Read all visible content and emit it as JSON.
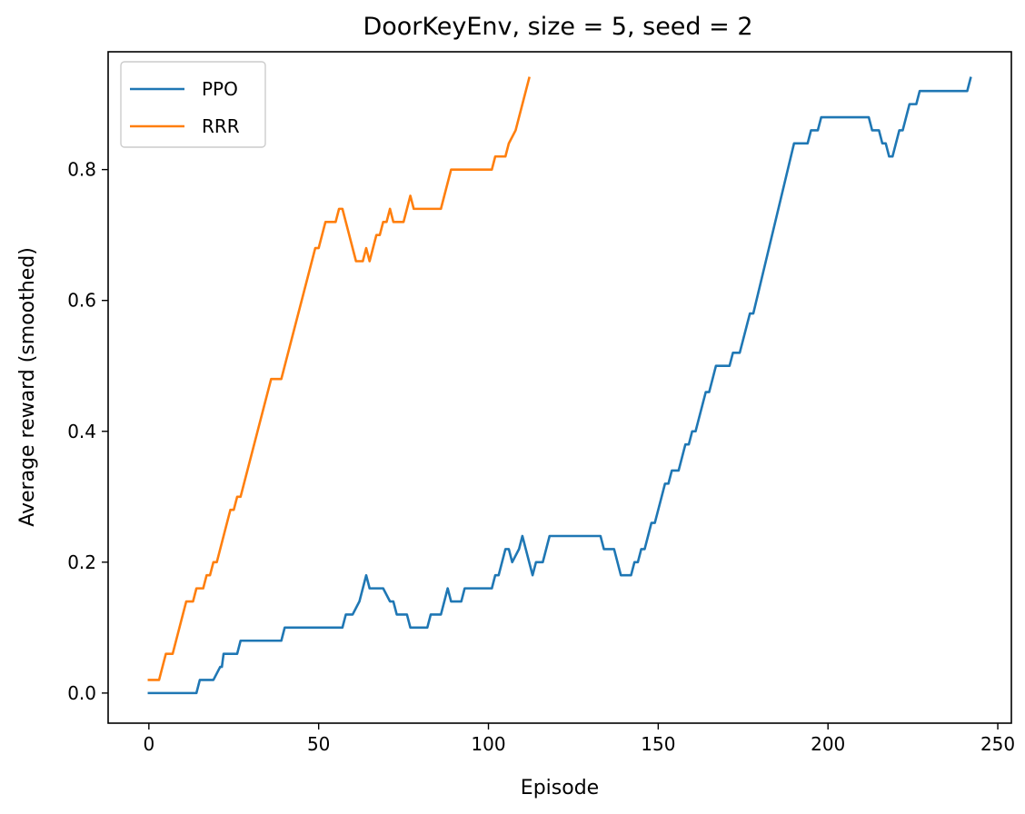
{
  "chart_data": {
    "type": "line",
    "title": "DoorKeyEnv, size = 5, seed = 2",
    "xlabel": "Episode",
    "ylabel": "Average reward (smoothed)",
    "xlim": [
      -12,
      254
    ],
    "ylim": [
      -0.046,
      0.98
    ],
    "xticks": [
      0,
      50,
      100,
      150,
      200,
      250
    ],
    "xtick_labels": [
      "0",
      "50",
      "100",
      "150",
      "200",
      "250"
    ],
    "yticks": [
      0.0,
      0.2,
      0.4,
      0.6,
      0.8
    ],
    "ytick_labels": [
      "0.0",
      "0.2",
      "0.4",
      "0.6",
      "0.8"
    ],
    "grid": false,
    "legend_position": "top-left",
    "series": [
      {
        "name": "PPO",
        "color": "#1f77b4",
        "points": [
          [
            0,
            0.0
          ],
          [
            14,
            0.0
          ],
          [
            15,
            0.02
          ],
          [
            19,
            0.02
          ],
          [
            21,
            0.04
          ],
          [
            21.5,
            0.04
          ],
          [
            22,
            0.06
          ],
          [
            26,
            0.06
          ],
          [
            27,
            0.08
          ],
          [
            39,
            0.08
          ],
          [
            40,
            0.1
          ],
          [
            57,
            0.1
          ],
          [
            58,
            0.12
          ],
          [
            60,
            0.12
          ],
          [
            62,
            0.14
          ],
          [
            64,
            0.18
          ],
          [
            65,
            0.16
          ],
          [
            69,
            0.16
          ],
          [
            71,
            0.14
          ],
          [
            72,
            0.14
          ],
          [
            73,
            0.12
          ],
          [
            76,
            0.12
          ],
          [
            77,
            0.1
          ],
          [
            82,
            0.1
          ],
          [
            83,
            0.12
          ],
          [
            86,
            0.12
          ],
          [
            87,
            0.14
          ],
          [
            88,
            0.16
          ],
          [
            89,
            0.14
          ],
          [
            92,
            0.14
          ],
          [
            93,
            0.16
          ],
          [
            101,
            0.16
          ],
          [
            102,
            0.18
          ],
          [
            103,
            0.18
          ],
          [
            104,
            0.2
          ],
          [
            105,
            0.22
          ],
          [
            106,
            0.22
          ],
          [
            107,
            0.2
          ],
          [
            109,
            0.22
          ],
          [
            110,
            0.24
          ],
          [
            111,
            0.22
          ],
          [
            113,
            0.18
          ],
          [
            114,
            0.2
          ],
          [
            116,
            0.2
          ],
          [
            118,
            0.24
          ],
          [
            133,
            0.24
          ],
          [
            134,
            0.22
          ],
          [
            137,
            0.22
          ],
          [
            139,
            0.18
          ],
          [
            142,
            0.18
          ],
          [
            143,
            0.2
          ],
          [
            144,
            0.2
          ],
          [
            145,
            0.22
          ],
          [
            146,
            0.22
          ],
          [
            147,
            0.24
          ],
          [
            148,
            0.26
          ],
          [
            149,
            0.26
          ],
          [
            151,
            0.3
          ],
          [
            152,
            0.32
          ],
          [
            153,
            0.32
          ],
          [
            154,
            0.34
          ],
          [
            156,
            0.34
          ],
          [
            157,
            0.36
          ],
          [
            158,
            0.38
          ],
          [
            159,
            0.38
          ],
          [
            160,
            0.4
          ],
          [
            161,
            0.4
          ],
          [
            162,
            0.42
          ],
          [
            163,
            0.44
          ],
          [
            164,
            0.46
          ],
          [
            165,
            0.46
          ],
          [
            166,
            0.48
          ],
          [
            167,
            0.5
          ],
          [
            171,
            0.5
          ],
          [
            172,
            0.52
          ],
          [
            174,
            0.52
          ],
          [
            175,
            0.54
          ],
          [
            176,
            0.56
          ],
          [
            177,
            0.58
          ],
          [
            178,
            0.58
          ],
          [
            190,
            0.84
          ],
          [
            194,
            0.84
          ],
          [
            195,
            0.86
          ],
          [
            197,
            0.86
          ],
          [
            198,
            0.88
          ],
          [
            212,
            0.88
          ],
          [
            213,
            0.86
          ],
          [
            215,
            0.86
          ],
          [
            216,
            0.84
          ],
          [
            217,
            0.84
          ],
          [
            218,
            0.82
          ],
          [
            219,
            0.82
          ],
          [
            221,
            0.86
          ],
          [
            222,
            0.86
          ],
          [
            224,
            0.9
          ],
          [
            226,
            0.9
          ],
          [
            227,
            0.92
          ],
          [
            241,
            0.92
          ],
          [
            242,
            0.94
          ]
        ]
      },
      {
        "name": "RRR",
        "color": "#ff7f0e",
        "points": [
          [
            0,
            0.02
          ],
          [
            3,
            0.02
          ],
          [
            4,
            0.04
          ],
          [
            5,
            0.06
          ],
          [
            7,
            0.06
          ],
          [
            10,
            0.12
          ],
          [
            11,
            0.14
          ],
          [
            13,
            0.14
          ],
          [
            14,
            0.16
          ],
          [
            16,
            0.16
          ],
          [
            17,
            0.18
          ],
          [
            18,
            0.18
          ],
          [
            19,
            0.2
          ],
          [
            20,
            0.2
          ],
          [
            23,
            0.26
          ],
          [
            24,
            0.28
          ],
          [
            25,
            0.28
          ],
          [
            26,
            0.3
          ],
          [
            27,
            0.3
          ],
          [
            36,
            0.48
          ],
          [
            39,
            0.48
          ],
          [
            48,
            0.66
          ],
          [
            49,
            0.68
          ],
          [
            50,
            0.68
          ],
          [
            51,
            0.7
          ],
          [
            52,
            0.72
          ],
          [
            55,
            0.72
          ],
          [
            56,
            0.74
          ],
          [
            57,
            0.74
          ],
          [
            58,
            0.72
          ],
          [
            61,
            0.66
          ],
          [
            63,
            0.66
          ],
          [
            64,
            0.68
          ],
          [
            65,
            0.66
          ],
          [
            67,
            0.7
          ],
          [
            68,
            0.7
          ],
          [
            69,
            0.72
          ],
          [
            70,
            0.72
          ],
          [
            71,
            0.74
          ],
          [
            72,
            0.72
          ],
          [
            75,
            0.72
          ],
          [
            77,
            0.76
          ],
          [
            78,
            0.74
          ],
          [
            86,
            0.74
          ],
          [
            89,
            0.8
          ],
          [
            101,
            0.8
          ],
          [
            102,
            0.82
          ],
          [
            104,
            0.82
          ],
          [
            105,
            0.82
          ],
          [
            106,
            0.84
          ],
          [
            108,
            0.86
          ],
          [
            112,
            0.94
          ]
        ]
      }
    ]
  }
}
